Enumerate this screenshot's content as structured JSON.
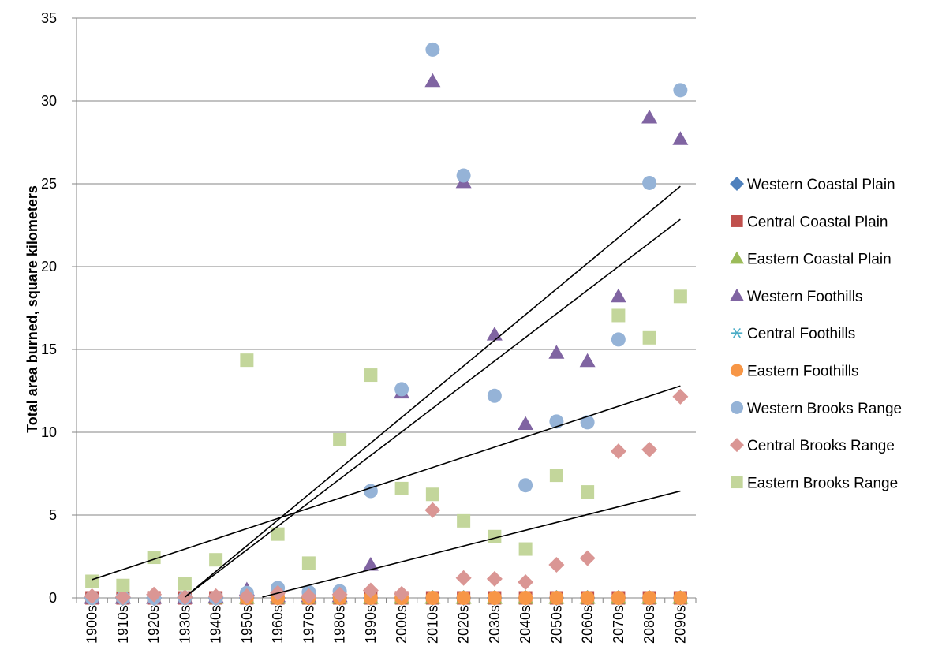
{
  "chart_data": {
    "type": "scatter",
    "title": "",
    "xlabel": "",
    "ylabel": "Total area burned, square kilometers",
    "ylim": [
      0,
      35
    ],
    "yticks": [
      0,
      5,
      10,
      15,
      20,
      25,
      30,
      35
    ],
    "grid": "horizontal",
    "legend_position": "right",
    "categories": [
      "1900s",
      "1910s",
      "1920s",
      "1930s",
      "1940s",
      "1950s",
      "1960s",
      "1970s",
      "1980s",
      "1990s",
      "2000s",
      "2010s",
      "2020s",
      "2030s",
      "2040s",
      "2050s",
      "2060s",
      "2070s",
      "2080s",
      "2090s"
    ],
    "series": [
      {
        "name": "Western Coastal Plain",
        "marker": "diamond",
        "color": "#4f81bd",
        "values": [
          0,
          0,
          0,
          0,
          0,
          0,
          0,
          0,
          0,
          0,
          0,
          0,
          0,
          0,
          0,
          0,
          0,
          0,
          0,
          0
        ]
      },
      {
        "name": "Central Coastal Plain",
        "marker": "square",
        "color": "#c0504d",
        "values": [
          0,
          0,
          0,
          0,
          0,
          0,
          0,
          0,
          0,
          0,
          0,
          0,
          0,
          0,
          0,
          0,
          0,
          0,
          0,
          0
        ]
      },
      {
        "name": "Eastern Coastal Plain",
        "marker": "triangle",
        "color": "#9bbb59",
        "values": [
          0,
          0,
          0,
          0,
          0,
          0,
          0,
          0,
          0,
          0,
          0,
          0,
          0,
          0,
          0,
          0,
          0,
          0,
          0,
          0
        ]
      },
      {
        "name": "Western Foothills",
        "marker": "triangle",
        "color": "#8064a2",
        "values": [
          0,
          0,
          0,
          0,
          0.05,
          0.5,
          0.1,
          0.1,
          0.1,
          2.0,
          12.4,
          31.2,
          25.1,
          15.9,
          10.5,
          14.8,
          14.3,
          18.2,
          29.0,
          27.7
        ]
      },
      {
        "name": "Central Foothills",
        "marker": "asterisk",
        "color": "#4bacc6",
        "values": [
          0,
          0,
          0,
          0,
          0,
          0,
          0,
          0,
          0,
          0,
          0,
          0,
          0,
          0,
          0,
          0,
          0,
          0,
          0,
          0
        ]
      },
      {
        "name": "Eastern Foothills",
        "marker": "circle",
        "color": "#f79646",
        "values": [
          0,
          0,
          0,
          0,
          0,
          0,
          0,
          0,
          0,
          0,
          0,
          0,
          0,
          0,
          0,
          0,
          0,
          0,
          0,
          0
        ]
      },
      {
        "name": "Western Brooks Range",
        "marker": "circle",
        "color": "#95b3d7",
        "values": [
          0,
          0,
          0,
          0,
          0,
          0.3,
          0.6,
          0.35,
          0.4,
          6.45,
          12.6,
          33.1,
          25.5,
          12.2,
          6.8,
          10.65,
          10.6,
          15.6,
          25.05,
          30.65
        ]
      },
      {
        "name": "Central Brooks Range",
        "marker": "diamond",
        "color": "#da9694",
        "values": [
          0.1,
          0.05,
          0.2,
          0.05,
          0.1,
          0.1,
          0.3,
          0.1,
          0.2,
          0.45,
          0.25,
          5.3,
          1.2,
          1.15,
          0.95,
          2.0,
          2.4,
          8.85,
          8.95,
          12.15
        ]
      },
      {
        "name": "Eastern Brooks Range",
        "marker": "square",
        "color": "#c3d69b",
        "values": [
          1.0,
          0.75,
          2.45,
          0.85,
          2.3,
          14.35,
          3.85,
          2.1,
          9.55,
          13.45,
          6.6,
          6.25,
          4.65,
          3.7,
          2.95,
          7.4,
          6.4,
          17.05,
          15.7,
          18.2
        ]
      }
    ],
    "trendlines": [
      {
        "color": "#000000",
        "points": [
          [
            4,
            0.05
          ],
          [
            20,
            24.85
          ]
        ]
      },
      {
        "color": "#000000",
        "points": [
          [
            4,
            0.05
          ],
          [
            20,
            22.85
          ]
        ]
      },
      {
        "color": "#000000",
        "points": [
          [
            1,
            1.1
          ],
          [
            20,
            12.8
          ]
        ]
      },
      {
        "color": "#000000",
        "points": [
          [
            6.5,
            0.05
          ],
          [
            20,
            6.45
          ]
        ]
      }
    ]
  }
}
